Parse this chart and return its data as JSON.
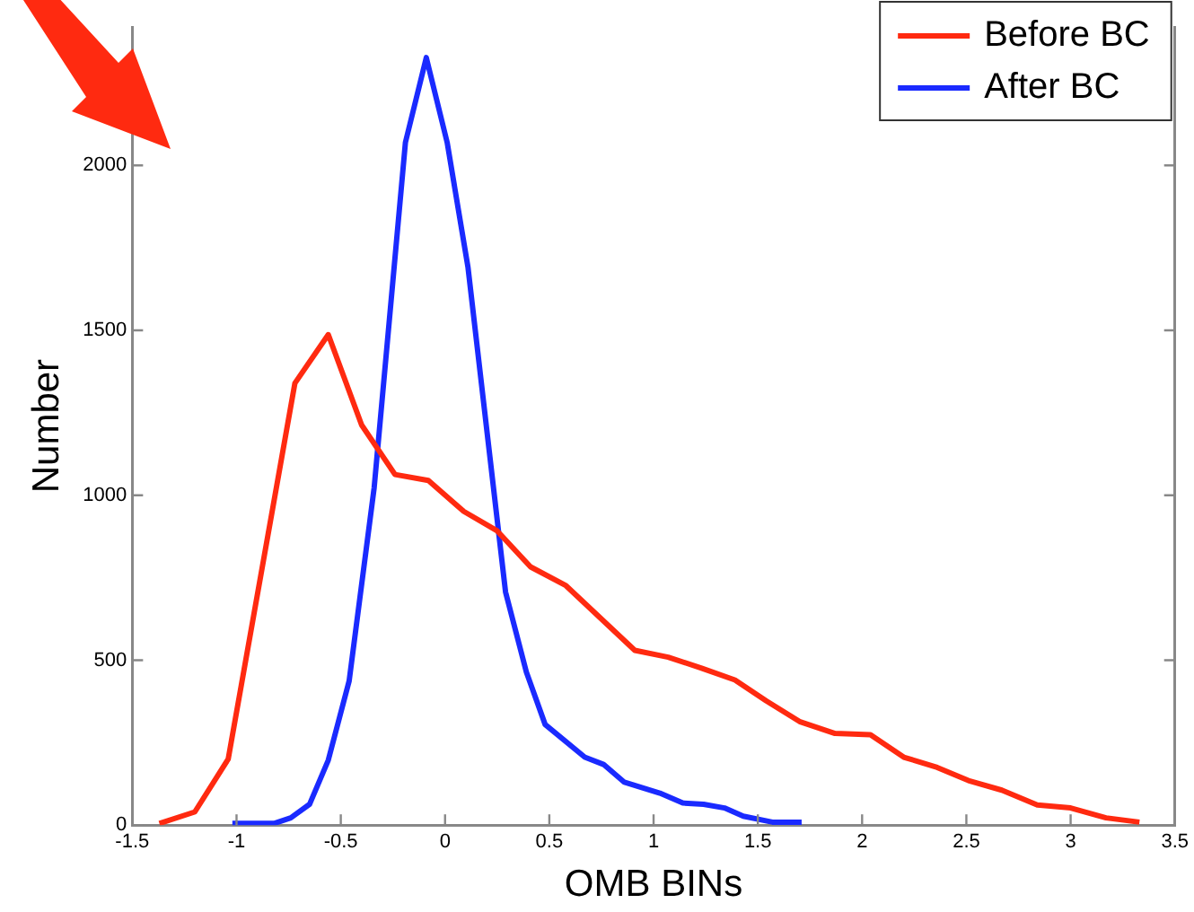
{
  "chart_data": {
    "type": "line",
    "xlabel": "OMB BINs",
    "ylabel": "Number",
    "xlim": [
      -1.5,
      3.5
    ],
    "xticks": [
      -1.5,
      -1,
      -0.5,
      0,
      0.5,
      1,
      1.5,
      2,
      2.5,
      3,
      3.5
    ],
    "ylim": [
      0,
      2420
    ],
    "yticks": [
      0,
      500,
      1000,
      1500,
      2000
    ],
    "grid": false,
    "legend": "top right",
    "marker": "none",
    "line_style": "solid",
    "series": [
      {
        "name": "Before BC",
        "color": "#ff2a10",
        "x": [
          -1.37,
          -1.2,
          -1.04,
          -0.72,
          -0.56,
          -0.4,
          -0.24,
          -0.08,
          0.09,
          0.25,
          0.41,
          0.58,
          0.91,
          1.07,
          1.23,
          1.39,
          1.54,
          1.7,
          1.87,
          2.04,
          2.2,
          2.36,
          2.51,
          2.67,
          2.84,
          3.0,
          3.17,
          3.33
        ],
        "values": [
          5,
          40,
          200,
          1340,
          1487,
          1213,
          1063,
          1045,
          951,
          892,
          783,
          726,
          530,
          509,
          476,
          440,
          377,
          314,
          278,
          274,
          206,
          175,
          135,
          106,
          61,
          52,
          22,
          9
        ]
      },
      {
        "name": "After BC",
        "color": "#1a2aff",
        "x": [
          -1.02,
          -0.82,
          -0.74,
          -0.65,
          -0.56,
          -0.46,
          -0.34,
          -0.19,
          -0.09,
          0.01,
          0.11,
          0.29,
          0.39,
          0.48,
          0.67,
          0.76,
          0.86,
          1.03,
          1.14,
          1.24,
          1.34,
          1.43,
          1.57,
          1.71
        ],
        "values": [
          5,
          5,
          22,
          63,
          197,
          437,
          1023,
          2070,
          2327,
          2070,
          1691,
          707,
          464,
          305,
          206,
          184,
          130,
          97,
          67,
          63,
          52,
          27,
          9,
          9
        ]
      }
    ]
  }
}
